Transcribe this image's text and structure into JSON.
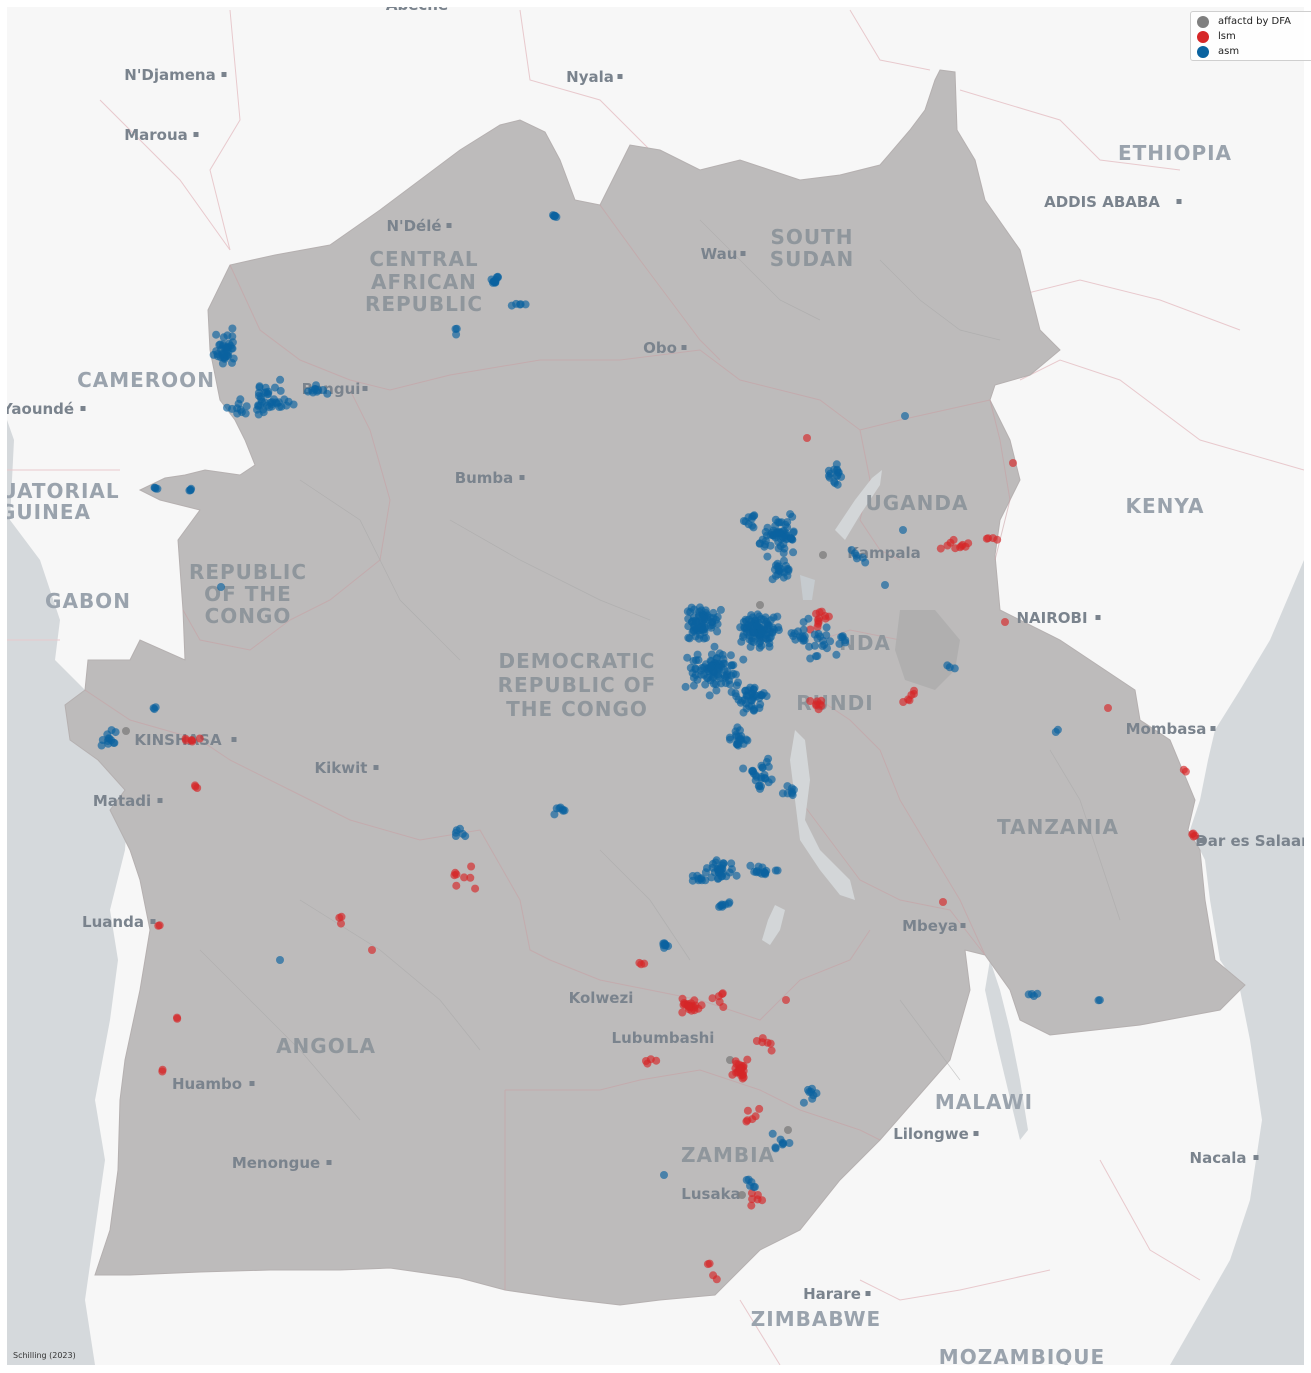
{
  "legend": {
    "items": [
      {
        "label": "affactd by DFA",
        "color": "#7f7f7f"
      },
      {
        "label": "lsm",
        "color": "#d62728"
      },
      {
        "label": "asm",
        "color": "#0a63a0"
      }
    ]
  },
  "credit": "Schilling (2023)",
  "colors": {
    "ocean": "#d5d9dc",
    "land": "#f7f7f7",
    "region": "#bdbbbb",
    "asm": "#0a63a0",
    "lsm": "#d62728",
    "dfa": "#7f7f7f"
  },
  "labels": {
    "countries": {
      "ethiopia": "ETHIOPIA",
      "south_sudan_1": "SOUTH",
      "south_sudan_2": "SUDAN",
      "car_1": "CENTRAL",
      "car_2": "AFRICAN",
      "car_3": "REPUBLIC",
      "cameroon": "CAMEROON",
      "eq_guinea_1": "UATORIAL",
      "eq_guinea_2": "GUINEA",
      "gabon": "GABON",
      "roc_1": "REPUBLIC",
      "roc_2": "OF THE",
      "roc_3": "CONGO",
      "drc_1": "DEMOCRATIC",
      "drc_2": "REPUBLIC OF",
      "drc_3": "THE CONGO",
      "uganda": "UGANDA",
      "kenya": "KENYA",
      "rwanda": "NDA",
      "burundi": "RUNDI",
      "tanzania": "TANZANIA",
      "angola": "ANGOLA",
      "zambia": "ZAMBIA",
      "malawi": "MALAWI",
      "zimbabwe": "ZIMBABWE",
      "mozambique": "MOZAMBIQUE"
    },
    "cities": {
      "abeche": "Abeché",
      "ndjamena": "N'Djamena",
      "nyala": "Nyala",
      "maroua": "Maroua",
      "addis": "ADDIS ABABA",
      "ndele": "N'Délé",
      "wau": "Wau",
      "obo": "Obo",
      "bangui": "Bangui",
      "yaounde": "Yaoundé",
      "bumba": "Bumba",
      "kampala": "Kampala",
      "nairobi": "NAIROBI",
      "mombasa": "Mombasa",
      "kinshasa": "KINSHASA",
      "kikwit": "Kikwit",
      "matadi": "Matadi",
      "dar": "Dar es Salaam",
      "luanda": "Luanda",
      "mbeya": "Mbeya",
      "kolwezi": "Kolwezi",
      "lubumbashi": "Lubumbashi",
      "huambo": "Huambo",
      "lilongwe": "Lilongwe",
      "nacala": "Nacala",
      "menongue": "Menongue",
      "lusaka": "Lusaka",
      "harare": "Harare"
    }
  }
}
